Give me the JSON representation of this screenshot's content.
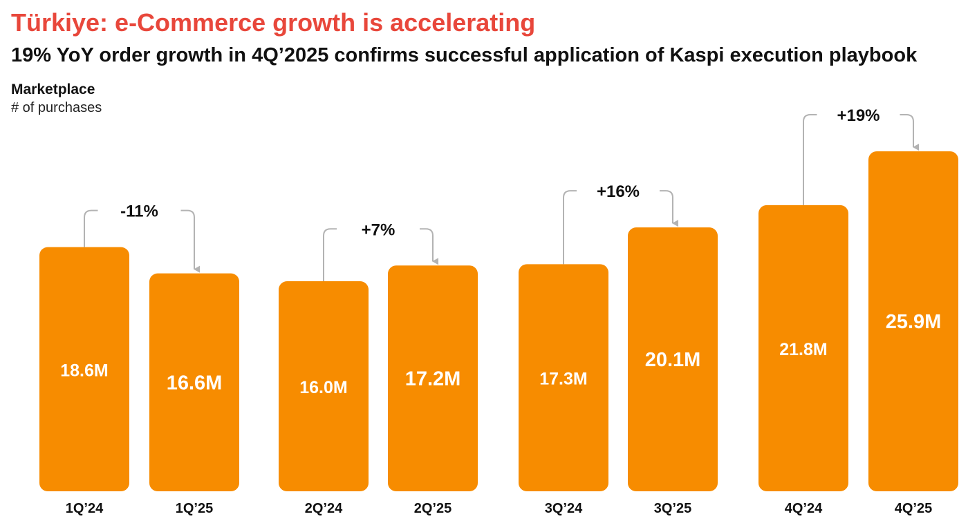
{
  "header": {
    "title": "Türkiye: e-Commerce growth is accelerating",
    "subtitle": "19% YoY order growth in 4Q’2025 confirms successful application of Kaspi execution playbook"
  },
  "panel": {
    "title": "Marketplace",
    "unit": "# of purchases"
  },
  "colors": {
    "title": "#e8473b",
    "bar": "#f78c00",
    "connector": "#b3b3b3"
  },
  "chart_data": {
    "type": "bar",
    "title": "Marketplace",
    "ylabel": "# of purchases",
    "unit": "M",
    "grid": false,
    "legend": "none",
    "categories": [
      "1Q’24",
      "1Q’25",
      "2Q’24",
      "2Q’25",
      "3Q’24",
      "3Q’25",
      "4Q’24",
      "4Q’25"
    ],
    "values": [
      18.6,
      16.6,
      16.0,
      17.2,
      17.3,
      20.1,
      21.8,
      25.9
    ],
    "value_labels": [
      "18.6M",
      "16.6M",
      "16.0M",
      "17.2M",
      "17.3M",
      "20.1M",
      "21.8M",
      "25.9M"
    ],
    "growth": [
      {
        "from": "1Q’24",
        "to": "1Q’25",
        "label": "-11%"
      },
      {
        "from": "2Q’24",
        "to": "2Q’25",
        "label": "+7%"
      },
      {
        "from": "3Q’24",
        "to": "3Q’25",
        "label": "+16%"
      },
      {
        "from": "4Q’24",
        "to": "4Q’25",
        "label": "+19%"
      }
    ]
  }
}
